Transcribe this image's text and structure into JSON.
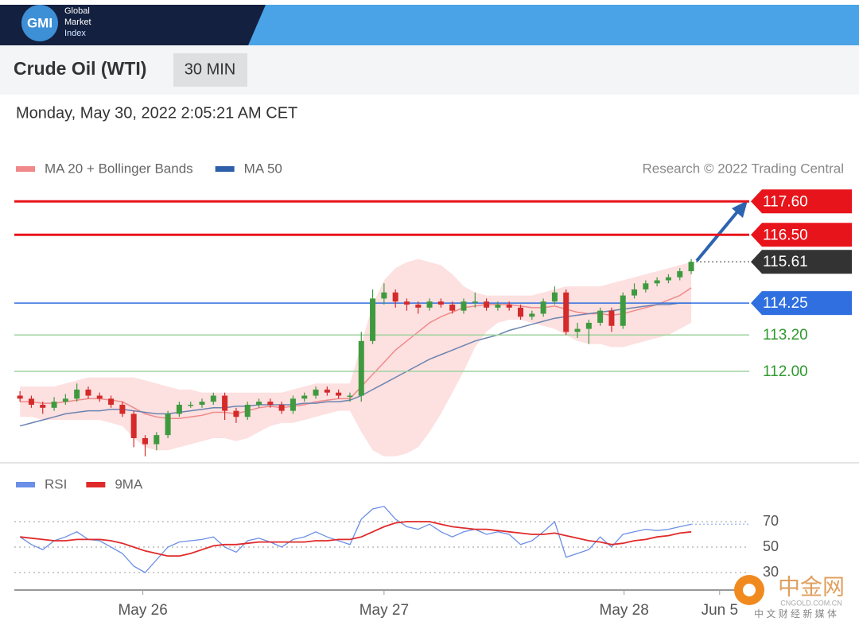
{
  "header": {
    "logo": "GMI",
    "brand_lines": [
      "Global",
      "Market",
      "Index"
    ],
    "title": "Crude Oil (WTI)",
    "interval": "30 MIN",
    "datetime": "Monday, May 30, 2022 2:05:21 AM CET",
    "source": "Research © 2022 Trading Central"
  },
  "watermark": {
    "name": "中金网",
    "site": "CNGOLD.COM.CN",
    "tagline": "中 文 财 经 新 媒 体"
  },
  "chart_data": [
    {
      "type": "candlestick",
      "ylim": [
        109,
        118
      ],
      "xlim": [
        -0.5,
        64.1
      ],
      "up_color": "#3f9a3f",
      "down_color": "#d42a2a",
      "open": [
        111.2,
        111.1,
        110.9,
        110.8,
        111.0,
        111.1,
        111.4,
        111.2,
        111.1,
        110.9,
        110.6,
        109.8,
        109.6,
        109.9,
        110.6,
        110.9,
        110.9,
        111.0,
        111.2,
        110.7,
        110.5,
        110.9,
        111.0,
        110.9,
        110.7,
        111.1,
        111.2,
        111.4,
        111.3,
        111.2,
        111.2,
        113.0,
        114.4,
        114.6,
        114.3,
        114.2,
        114.1,
        114.3,
        114.2,
        114.0,
        114.3,
        114.3,
        114.1,
        114.2,
        114.1,
        113.8,
        113.9,
        114.3,
        114.6,
        113.3,
        113.4,
        113.6,
        114.0,
        113.5,
        114.5,
        114.7,
        114.9,
        115.0,
        115.1,
        115.3
      ],
      "high": [
        111.35,
        111.2,
        111.0,
        111.15,
        111.25,
        111.6,
        111.5,
        111.3,
        111.2,
        111.0,
        110.7,
        109.9,
        110.0,
        110.7,
        111.0,
        111.0,
        111.1,
        111.3,
        111.3,
        110.8,
        111.0,
        111.1,
        111.1,
        111.0,
        111.2,
        111.3,
        111.5,
        111.5,
        111.4,
        111.3,
        113.3,
        114.7,
        114.9,
        114.7,
        114.4,
        114.3,
        114.4,
        114.4,
        114.3,
        114.4,
        114.6,
        114.4,
        114.3,
        114.3,
        114.2,
        114.0,
        114.4,
        114.8,
        114.7,
        113.6,
        113.7,
        114.1,
        114.1,
        114.6,
        114.9,
        115.0,
        115.1,
        115.2,
        115.4,
        115.7
      ],
      "low": [
        111.0,
        110.8,
        110.6,
        110.7,
        110.9,
        111.0,
        111.1,
        111.0,
        110.8,
        110.5,
        109.5,
        109.2,
        109.4,
        109.8,
        110.5,
        110.8,
        110.8,
        110.9,
        110.4,
        110.3,
        110.4,
        110.8,
        110.8,
        110.6,
        110.6,
        111.0,
        111.1,
        111.2,
        111.1,
        111.0,
        111.0,
        112.9,
        114.2,
        114.1,
        114.0,
        113.9,
        114.0,
        114.1,
        113.9,
        113.9,
        114.1,
        114.0,
        114.0,
        114.0,
        113.7,
        113.7,
        113.8,
        114.2,
        113.2,
        113.1,
        112.9,
        113.5,
        113.3,
        113.4,
        114.4,
        114.6,
        114.8,
        114.9,
        115.0,
        115.2
      ],
      "close": [
        111.1,
        110.9,
        110.8,
        111.0,
        111.1,
        111.4,
        111.2,
        111.1,
        110.9,
        110.6,
        109.8,
        109.6,
        109.9,
        110.6,
        110.9,
        110.9,
        111.0,
        111.2,
        110.7,
        110.5,
        110.9,
        111.0,
        110.9,
        110.7,
        111.1,
        111.2,
        111.4,
        111.3,
        111.2,
        111.2,
        113.0,
        114.4,
        114.6,
        114.3,
        114.2,
        114.1,
        114.3,
        114.2,
        114.0,
        114.3,
        114.3,
        114.1,
        114.2,
        114.1,
        113.8,
        113.9,
        114.3,
        114.6,
        113.3,
        113.4,
        113.6,
        114.0,
        113.5,
        114.5,
        114.7,
        114.9,
        115.0,
        115.1,
        115.3,
        115.61
      ],
      "series": [
        {
          "name": "MA 20 + Bollinger Bands",
          "color": "#f08a8a",
          "band_color": "#fde0e0",
          "values": [
            111.0,
            111.0,
            110.95,
            110.95,
            111.0,
            111.05,
            111.1,
            111.1,
            111.05,
            111.0,
            110.8,
            110.6,
            110.5,
            110.45,
            110.45,
            110.5,
            110.55,
            110.65,
            110.65,
            110.6,
            110.7,
            110.8,
            110.85,
            110.8,
            110.85,
            110.9,
            111.0,
            111.05,
            111.1,
            111.1,
            111.5,
            111.9,
            112.3,
            112.7,
            113.0,
            113.3,
            113.6,
            113.8,
            113.95,
            114.1,
            114.15,
            114.2,
            114.2,
            114.2,
            114.15,
            114.1,
            114.1,
            114.15,
            114.05,
            113.95,
            113.9,
            113.9,
            113.85,
            113.9,
            114.0,
            114.1,
            114.2,
            114.35,
            114.5,
            114.75
          ],
          "upper": [
            111.5,
            111.5,
            111.5,
            111.5,
            111.6,
            111.7,
            111.8,
            111.8,
            111.8,
            111.8,
            111.8,
            111.7,
            111.6,
            111.5,
            111.4,
            111.4,
            111.3,
            111.3,
            111.3,
            111.3,
            111.3,
            111.3,
            111.3,
            111.3,
            111.4,
            111.5,
            111.6,
            111.6,
            111.6,
            111.6,
            112.9,
            114.2,
            115.0,
            115.4,
            115.6,
            115.7,
            115.6,
            115.5,
            115.2,
            114.8,
            114.6,
            114.5,
            114.5,
            114.5,
            114.5,
            114.5,
            114.6,
            114.7,
            114.8,
            114.8,
            114.8,
            114.8,
            114.9,
            115.0,
            115.1,
            115.2,
            115.3,
            115.4,
            115.5,
            115.6
          ],
          "lower": [
            110.5,
            110.5,
            110.4,
            110.4,
            110.4,
            110.4,
            110.4,
            110.4,
            110.3,
            110.2,
            109.8,
            109.5,
            109.4,
            109.4,
            109.5,
            109.6,
            109.7,
            109.8,
            109.8,
            109.7,
            109.8,
            110.0,
            110.2,
            110.3,
            110.3,
            110.4,
            110.5,
            110.6,
            110.7,
            110.7,
            110.0,
            109.4,
            109.2,
            109.2,
            109.3,
            109.5,
            110.0,
            110.6,
            111.3,
            112.0,
            112.8,
            113.3,
            113.6,
            113.7,
            113.7,
            113.6,
            113.5,
            113.4,
            113.2,
            113.0,
            112.9,
            112.9,
            112.8,
            112.8,
            112.9,
            113.0,
            113.1,
            113.2,
            113.4,
            113.6
          ]
        },
        {
          "name": "MA 50",
          "color": "#6a84b0",
          "legend_color": "#2f5fa8",
          "values": [
            110.2,
            110.3,
            110.4,
            110.5,
            110.6,
            110.65,
            110.7,
            110.7,
            110.75,
            110.75,
            110.7,
            110.65,
            110.6,
            110.6,
            110.65,
            110.7,
            110.75,
            110.8,
            110.8,
            110.85,
            110.85,
            110.9,
            110.9,
            110.9,
            110.9,
            110.95,
            110.95,
            111.0,
            111.0,
            111.05,
            111.2,
            111.4,
            111.6,
            111.8,
            112.0,
            112.2,
            112.4,
            112.55,
            112.7,
            112.85,
            113.0,
            113.1,
            113.2,
            113.35,
            113.45,
            113.55,
            113.65,
            113.75,
            113.8,
            113.85,
            113.9,
            113.95,
            114.0,
            114.05,
            114.1,
            114.15,
            114.2,
            114.2,
            114.25,
            114.25
          ]
        }
      ],
      "levels": [
        {
          "value": 117.6,
          "label": "117.60",
          "color": "#e8141b",
          "box": true,
          "line": "solid"
        },
        {
          "value": 116.5,
          "label": "116.50",
          "color": "#e8141b",
          "box": true,
          "line": "solid"
        },
        {
          "value": 115.61,
          "color": "#333333",
          "box": true,
          "line": "dotted"
        },
        {
          "value": 114.25,
          "color": "#2f6fe0",
          "box": true,
          "line": "solid"
        },
        {
          "value": 113.2,
          "label": "113.20",
          "color": "#2f9a2f",
          "box": false,
          "line": "thin"
        },
        {
          "value": 112,
          "label": "112.00",
          "color": "#2f9a2f",
          "box": false,
          "line": "thin"
        }
      ]
    },
    {
      "type": "line",
      "ylim": [
        20,
        90
      ],
      "xlim": [
        -0.5,
        64.1
      ],
      "yticks": [
        30,
        50,
        70
      ],
      "xticks": [
        {
          "value": 10.8,
          "label": "May 26"
        },
        {
          "value": 32,
          "label": "May 27"
        },
        {
          "value": 53.1,
          "label": "May 28"
        },
        {
          "value": 61.5,
          "label": "Jun 5"
        }
      ],
      "series": [
        {
          "name": "RSI",
          "color": "#6b8ee6",
          "values": [
            58,
            52,
            48,
            55,
            58,
            62,
            56,
            55,
            50,
            45,
            35,
            30,
            40,
            50,
            54,
            55,
            56,
            58,
            50,
            46,
            55,
            57,
            54,
            50,
            56,
            58,
            62,
            58,
            55,
            52,
            72,
            80,
            82,
            72,
            66,
            64,
            68,
            62,
            58,
            62,
            64,
            60,
            62,
            60,
            52,
            55,
            62,
            70,
            42,
            45,
            48,
            58,
            50,
            60,
            62,
            64,
            63,
            64,
            66,
            68
          ]
        },
        {
          "name": "9MA",
          "color": "#e02a2a",
          "values": [
            58,
            57,
            56,
            55,
            55,
            56,
            56,
            56,
            55,
            53,
            50,
            47,
            45,
            43,
            43,
            45,
            48,
            51,
            52,
            52,
            53,
            54,
            54,
            54,
            54,
            54,
            55,
            55,
            56,
            56,
            58,
            62,
            66,
            69,
            70,
            70,
            70,
            68,
            66,
            65,
            64,
            64,
            63,
            62,
            61,
            60,
            60,
            61,
            59,
            57,
            55,
            54,
            52,
            53,
            55,
            56,
            58,
            59,
            61,
            62
          ]
        }
      ]
    }
  ]
}
